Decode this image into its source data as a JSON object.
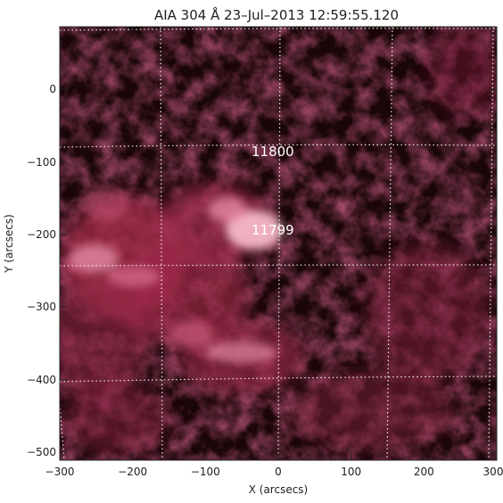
{
  "figure": {
    "title": "AIA 304 Å 23–Jul–2013 12:59:55.120",
    "xlabel": "X (arcsecs)",
    "ylabel": "Y (arcsecs)",
    "x_ticks": [
      "−300",
      "−200",
      "−100",
      "0",
      "100",
      "200",
      "300"
    ],
    "y_ticks": [
      "0",
      "−100",
      "−200",
      "−300",
      "−400",
      "−500"
    ],
    "active_regions": [
      {
        "label": "11800"
      },
      {
        "label": "11799"
      }
    ],
    "colors": {
      "background": "#ffffff",
      "map_dark": "#1a0608",
      "map_mid": "#9e2a4a",
      "map_bright": "#f4a6b8",
      "grid": "#ffffff",
      "axis_text": "#222222"
    }
  }
}
